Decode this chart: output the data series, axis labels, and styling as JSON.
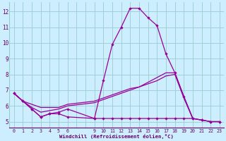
{
  "background_color": "#cceeff",
  "grid_color": "#99cccc",
  "line_color": "#990099",
  "axis_color": "#660066",
  "xtick_labels": [
    "0",
    "1",
    "2",
    "3",
    "4",
    "5",
    "6",
    "",
    "",
    "9",
    "10",
    "11",
    "12",
    "13",
    "14",
    "15",
    "16",
    "17",
    "18",
    "19",
    "20",
    "21",
    "22",
    "23"
  ],
  "xtick_positions": [
    0,
    1,
    2,
    3,
    4,
    5,
    6,
    7,
    8,
    9,
    10,
    11,
    12,
    13,
    14,
    15,
    16,
    17,
    18,
    19,
    20,
    21,
    22,
    23
  ],
  "ytick_positions": [
    5,
    6,
    7,
    8,
    9,
    10,
    11,
    12
  ],
  "ytick_labels": [
    "5",
    "6",
    "7",
    "8",
    "9",
    "10",
    "11",
    "12"
  ],
  "xlim": [
    -0.5,
    23.5
  ],
  "ylim": [
    4.6,
    12.6
  ],
  "xlabel": "Windchill (Refroidissement éolien,°C)",
  "line1_x": [
    0,
    1,
    2,
    3,
    4,
    5,
    6,
    9,
    10,
    11,
    12,
    13,
    14,
    15,
    16,
    17,
    18,
    19,
    20,
    21,
    22,
    23
  ],
  "line1_y": [
    6.8,
    6.3,
    5.8,
    5.3,
    5.5,
    5.5,
    5.3,
    5.2,
    7.6,
    9.9,
    11.0,
    12.2,
    12.2,
    11.6,
    11.1,
    9.3,
    8.1,
    6.6,
    5.2,
    5.1,
    5.0,
    5.0
  ],
  "line2_x": [
    0,
    1,
    2,
    3,
    4,
    5,
    6,
    9,
    10,
    11,
    12,
    13,
    14,
    15,
    16,
    17,
    18,
    19,
    20,
    21,
    22,
    23
  ],
  "line2_y": [
    6.8,
    6.3,
    6.1,
    5.9,
    5.9,
    5.9,
    6.1,
    6.3,
    6.5,
    6.7,
    6.9,
    7.1,
    7.2,
    7.5,
    7.8,
    8.1,
    8.1,
    6.6,
    5.2,
    5.1,
    5.0,
    5.0
  ],
  "line3_x": [
    0,
    1,
    2,
    3,
    4,
    5,
    6,
    9,
    10,
    11,
    12,
    13,
    14,
    15,
    16,
    17,
    18,
    19,
    20,
    21,
    22,
    23
  ],
  "line3_y": [
    6.8,
    6.3,
    5.8,
    5.3,
    5.5,
    5.6,
    5.8,
    5.2,
    5.2,
    5.2,
    5.2,
    5.2,
    5.2,
    5.2,
    5.2,
    5.2,
    5.2,
    5.2,
    5.2,
    5.1,
    5.0,
    5.0
  ],
  "line4_x": [
    0,
    1,
    2,
    3,
    4,
    5,
    6,
    9,
    10,
    11,
    12,
    13,
    14,
    15,
    16,
    17,
    18,
    19,
    20
  ],
  "line4_y": [
    6.8,
    6.3,
    5.9,
    5.6,
    5.7,
    5.8,
    6.0,
    6.2,
    6.4,
    6.6,
    6.8,
    7.0,
    7.2,
    7.4,
    7.6,
    7.9,
    8.0,
    6.5,
    5.2
  ]
}
